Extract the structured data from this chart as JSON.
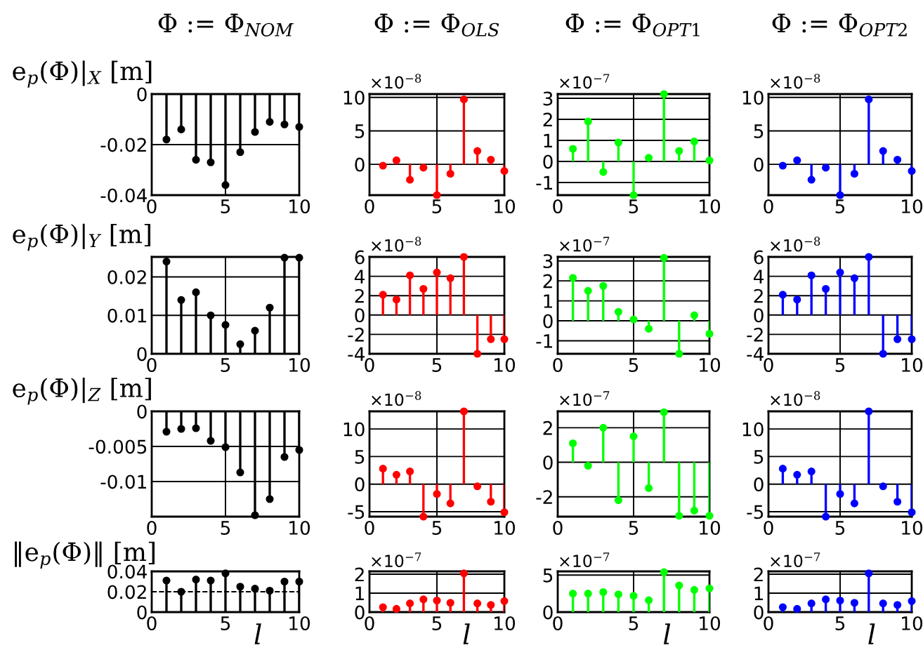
{
  "chart_data": [
    {
      "type": "lollipop",
      "title": "Φ := Φ$_{NOM}$",
      "ylabel": "e$_{p}$(Φ)|$_{X}$ [m]",
      "x": [
        1,
        2,
        3,
        4,
        5,
        6,
        7,
        8,
        9,
        10
      ],
      "values": [
        -0.018,
        -0.014,
        -0.026,
        -0.027,
        -0.036,
        -0.023,
        -0.015,
        -0.011,
        -0.012,
        -0.013
      ],
      "color": "#000000",
      "xlim": [
        0,
        10
      ],
      "xticks": [
        0,
        5,
        10
      ],
      "ylim": [
        -0.04,
        0
      ],
      "yticks": [
        -0.04,
        -0.02,
        0
      ],
      "grid": true,
      "marker": "circle"
    },
    {
      "type": "lollipop",
      "title": "Φ := Φ$_{OLS}$",
      "annotations": [
        "×10$^{−8}$"
      ],
      "x": [
        1,
        2,
        3,
        4,
        5,
        6,
        7,
        8,
        9,
        10
      ],
      "values": [
        -0.2,
        0.6,
        -2.3,
        -0.5,
        -4.6,
        -1.4,
        9.7,
        2.0,
        0.7,
        -1.0
      ],
      "color": "#ff0000",
      "xlim": [
        0,
        10
      ],
      "xticks": [
        0,
        5,
        10
      ],
      "ylim": [
        -4.6,
        10.5
      ],
      "yticks": [
        0,
        5,
        10
      ],
      "grid": true,
      "marker": "circle"
    },
    {
      "type": "lollipop",
      "title": "Φ := Φ$_{OPT1}$",
      "annotations": [
        "×10$^{−7}$"
      ],
      "x": [
        1,
        2,
        3,
        4,
        5,
        6,
        7,
        8,
        9,
        10
      ],
      "values": [
        0.6,
        1.9,
        -0.5,
        0.9,
        -1.6,
        0.17,
        3.2,
        0.5,
        0.95,
        0.05
      ],
      "color": "#00ff00",
      "xlim": [
        0,
        10
      ],
      "xticks": [
        0,
        5,
        10
      ],
      "ylim": [
        -1.6,
        3.2
      ],
      "yticks": [
        -1,
        0,
        1,
        2,
        3
      ],
      "grid": true,
      "marker": "circle"
    },
    {
      "type": "lollipop",
      "title": "Φ := Φ$_{OPT2}$",
      "annotations": [
        "×10$^{−8}$"
      ],
      "x": [
        1,
        2,
        3,
        4,
        5,
        6,
        7,
        8,
        9,
        10
      ],
      "values": [
        -0.2,
        0.6,
        -2.3,
        -0.5,
        -4.6,
        -1.4,
        9.7,
        2.0,
        0.7,
        -1.0
      ],
      "color": "#0000ff",
      "xlim": [
        0,
        10
      ],
      "xticks": [
        0,
        5,
        10
      ],
      "ylim": [
        -4.6,
        10.5
      ],
      "yticks": [
        0,
        5,
        10
      ],
      "grid": true,
      "marker": "circle"
    },
    {
      "type": "lollipop",
      "ylabel": "e$_{p}$(Φ)|$_{Y}$ [m]",
      "x": [
        1,
        2,
        3,
        4,
        5,
        6,
        7,
        8,
        9,
        10
      ],
      "values": [
        0.024,
        0.014,
        0.016,
        0.01,
        0.0075,
        0.0025,
        0.006,
        0.012,
        0.025,
        0.025
      ],
      "color": "#000000",
      "xlim": [
        0,
        10
      ],
      "xticks": [
        0,
        5,
        10
      ],
      "ylim": [
        0,
        0.0252
      ],
      "yticks": [
        0,
        0.01,
        0.02
      ],
      "grid": true,
      "marker": "circle"
    },
    {
      "type": "lollipop",
      "annotations": [
        "×10$^{−8}$"
      ],
      "x": [
        1,
        2,
        3,
        4,
        5,
        6,
        7,
        8,
        9,
        10
      ],
      "values": [
        2.1,
        1.6,
        4.1,
        2.7,
        4.4,
        3.8,
        6.0,
        -4.0,
        -2.5,
        -2.5
      ],
      "color": "#ff0000",
      "xlim": [
        0,
        10
      ],
      "xticks": [
        0,
        5,
        10
      ],
      "ylim": [
        -4,
        6
      ],
      "yticks": [
        -4,
        -2,
        0,
        2,
        4,
        6
      ],
      "grid": true,
      "marker": "circle"
    },
    {
      "type": "lollipop",
      "annotations": [
        "×10$^{−7}$"
      ],
      "x": [
        1,
        2,
        3,
        4,
        5,
        6,
        7,
        8,
        9,
        10
      ],
      "values": [
        2.15,
        1.5,
        1.75,
        0.45,
        0.07,
        -0.4,
        3.15,
        -1.65,
        0.28,
        -0.65
      ],
      "color": "#00ff00",
      "xlim": [
        0,
        10
      ],
      "xticks": [
        0,
        5,
        10
      ],
      "ylim": [
        -1.65,
        3.2
      ],
      "yticks": [
        -1,
        0,
        1,
        2,
        3
      ],
      "grid": true,
      "marker": "circle"
    },
    {
      "type": "lollipop",
      "annotations": [
        "×10$^{−8}$"
      ],
      "x": [
        1,
        2,
        3,
        4,
        5,
        6,
        7,
        8,
        9,
        10
      ],
      "values": [
        2.1,
        1.6,
        4.1,
        2.7,
        4.4,
        3.8,
        6.0,
        -4.0,
        -2.5,
        -2.5
      ],
      "color": "#0000ff",
      "xlim": [
        0,
        10
      ],
      "xticks": [
        0,
        5,
        10
      ],
      "ylim": [
        -4,
        6
      ],
      "yticks": [
        -4,
        -2,
        0,
        2,
        4,
        6
      ],
      "grid": true,
      "marker": "circle"
    },
    {
      "type": "lollipop",
      "ylabel": "e$_{p}$(Φ)|$_{Z}$ [m]",
      "x": [
        1,
        2,
        3,
        4,
        5,
        6,
        7,
        8,
        9,
        10
      ],
      "values": [
        -0.0029,
        -0.0025,
        -0.0024,
        -0.0042,
        -0.0051,
        -0.0087,
        -0.0148,
        -0.0125,
        -0.0065,
        -0.0055
      ],
      "color": "#000000",
      "xlim": [
        0,
        10
      ],
      "xticks": [
        0,
        5,
        10
      ],
      "ylim": [
        -0.015,
        0
      ],
      "yticks": [
        -0.01,
        -0.005,
        0
      ],
      "grid": true,
      "marker": "circle"
    },
    {
      "type": "lollipop",
      "annotations": [
        "×10$^{−8}$"
      ],
      "x": [
        1,
        2,
        3,
        4,
        5,
        6,
        7,
        8,
        9,
        10
      ],
      "values": [
        2.8,
        1.7,
        2.3,
        -5.9,
        -1.8,
        -3.5,
        13.2,
        -0.4,
        -3.2,
        -5.1
      ],
      "color": "#ff0000",
      "xlim": [
        0,
        10
      ],
      "xticks": [
        0,
        5,
        10
      ],
      "ylim": [
        -5.9,
        13.2
      ],
      "yticks": [
        -5,
        0,
        5,
        10
      ],
      "grid": true,
      "marker": "circle"
    },
    {
      "type": "lollipop",
      "annotations": [
        "×10$^{−7}$"
      ],
      "x": [
        1,
        2,
        3,
        4,
        5,
        6,
        7,
        8,
        9,
        10
      ],
      "values": [
        1.1,
        -0.2,
        2.0,
        -2.2,
        1.5,
        -1.5,
        2.9,
        -3.1,
        -2.8,
        -3.1
      ],
      "color": "#00ff00",
      "xlim": [
        0,
        10
      ],
      "xticks": [
        0,
        5,
        10
      ],
      "ylim": [
        -3.15,
        2.95
      ],
      "yticks": [
        -2,
        0,
        2
      ],
      "grid": true,
      "marker": "circle"
    },
    {
      "type": "lollipop",
      "annotations": [
        "×10$^{−8}$"
      ],
      "x": [
        1,
        2,
        3,
        4,
        5,
        6,
        7,
        8,
        9,
        10
      ],
      "values": [
        2.8,
        1.7,
        2.3,
        -5.9,
        -1.8,
        -3.5,
        13.2,
        -0.4,
        -3.2,
        -5.1
      ],
      "color": "#0000ff",
      "xlim": [
        0,
        10
      ],
      "xticks": [
        0,
        5,
        10
      ],
      "ylim": [
        -5.9,
        13.2
      ],
      "yticks": [
        -5,
        0,
        5,
        10
      ],
      "grid": true,
      "marker": "circle"
    },
    {
      "type": "lollipop",
      "ylabel": "‖e$_{p}$(Φ)‖ [m]",
      "xlabel": "l",
      "x": [
        1,
        2,
        3,
        4,
        5,
        6,
        7,
        8,
        9,
        10
      ],
      "values": [
        0.031,
        0.02,
        0.032,
        0.031,
        0.038,
        0.025,
        0.023,
        0.021,
        0.03,
        0.03
      ],
      "color": "#000000",
      "xlim": [
        0,
        10
      ],
      "xticks": [
        0,
        5,
        10
      ],
      "ylim": [
        0,
        0.04
      ],
      "yticks": [
        0,
        0.02,
        0.04
      ],
      "ref_lines": [
        {
          "axis": "y",
          "value": 0.02,
          "color": "#000000",
          "line_style": "dashed"
        }
      ],
      "marker": "circle"
    },
    {
      "type": "lollipop",
      "xlabel": "l",
      "annotations": [
        "×10$^{−7}$"
      ],
      "x": [
        1,
        2,
        3,
        4,
        5,
        6,
        7,
        8,
        9,
        10
      ],
      "values": [
        0.26,
        0.17,
        0.46,
        0.67,
        0.61,
        0.49,
        2.05,
        0.46,
        0.38,
        0.58
      ],
      "color": "#ff0000",
      "xlim": [
        0,
        10
      ],
      "xticks": [
        0,
        5,
        10
      ],
      "ylim": [
        0,
        2.15
      ],
      "yticks": [
        0,
        1,
        2
      ],
      "grid": true,
      "marker": "circle"
    },
    {
      "type": "lollipop",
      "xlabel": "l",
      "annotations": [
        "×10$^{−7}$"
      ],
      "x": [
        1,
        2,
        3,
        4,
        5,
        6,
        7,
        8,
        9,
        10
      ],
      "values": [
        2.5,
        2.5,
        2.7,
        2.4,
        2.2,
        1.6,
        5.4,
        3.6,
        3.0,
        3.2
      ],
      "color": "#00ff00",
      "xlim": [
        0,
        10
      ],
      "xticks": [
        0,
        5,
        10
      ],
      "ylim": [
        0,
        5.5
      ],
      "yticks": [
        0,
        5
      ],
      "grid": true,
      "marker": "circle"
    },
    {
      "type": "lollipop",
      "xlabel": "l",
      "annotations": [
        "×10$^{−7}$"
      ],
      "x": [
        1,
        2,
        3,
        4,
        5,
        6,
        7,
        8,
        9,
        10
      ],
      "values": [
        0.26,
        0.17,
        0.46,
        0.67,
        0.61,
        0.49,
        2.05,
        0.46,
        0.38,
        0.58
      ],
      "color": "#0000ff",
      "xlim": [
        0,
        10
      ],
      "xticks": [
        0,
        5,
        10
      ],
      "ylim": [
        0,
        2.15
      ],
      "yticks": [
        0,
        1,
        2
      ],
      "grid": true,
      "marker": "circle"
    }
  ]
}
